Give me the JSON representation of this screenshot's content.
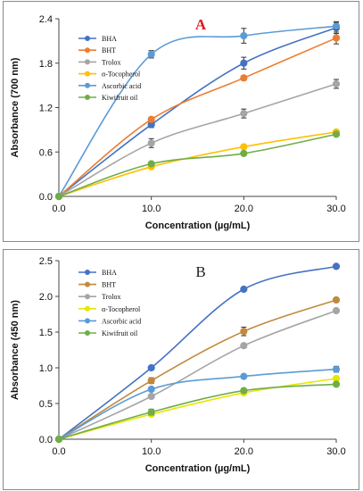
{
  "chart_data": [
    {
      "type": "line",
      "panel_label": "A",
      "xlabel": "Concentration (µg/mL)",
      "ylabel": "Absorbance (700 nm)",
      "x": [
        0,
        10,
        20,
        30
      ],
      "xticks": [
        "0.0",
        "10.0",
        "20.0",
        "30.0"
      ],
      "ylim": [
        0,
        2.4
      ],
      "yticks": [
        "0.0",
        "0.6",
        "1.2",
        "1.8",
        "2.4"
      ],
      "legend_position": "top-left",
      "series": [
        {
          "name": "BHA",
          "color": "#4472c4",
          "values": [
            0,
            0.97,
            1.8,
            2.28
          ],
          "errors": [
            0,
            0.04,
            0.08,
            0.08
          ]
        },
        {
          "name": "BHT",
          "color": "#ed7d31",
          "values": [
            0,
            1.04,
            1.6,
            2.14
          ],
          "errors": [
            0,
            0.03,
            0.03,
            0.08
          ]
        },
        {
          "name": "Trolox",
          "color": "#a5a5a5",
          "values": [
            0,
            0.72,
            1.12,
            1.52
          ],
          "errors": [
            0,
            0.06,
            0.06,
            0.06
          ]
        },
        {
          "name": "α-Tocopherol",
          "color": "#ffc000",
          "values": [
            0,
            0.4,
            0.67,
            0.87
          ],
          "errors": [
            0,
            0.02,
            0.02,
            0.02
          ]
        },
        {
          "name": "Ascorbic acid",
          "color": "#5b9bd5",
          "values": [
            0,
            1.92,
            2.17,
            2.3
          ],
          "errors": [
            0,
            0.05,
            0.1,
            0.05
          ]
        },
        {
          "name": "Kiwifruit oil",
          "color": "#70ad47",
          "values": [
            0,
            0.44,
            0.58,
            0.84
          ],
          "errors": [
            0,
            0.02,
            0.02,
            0.02
          ]
        }
      ]
    },
    {
      "type": "line",
      "panel_label": "B",
      "xlabel": "Concentration (µg/mL)",
      "ylabel": "Absorbance (450 nm)",
      "x": [
        0,
        10,
        20,
        30
      ],
      "xticks": [
        "0.0",
        "10.0",
        "20.0",
        "30.0"
      ],
      "ylim": [
        0,
        2.5
      ],
      "yticks": [
        "0.0",
        "0.5",
        "1.0",
        "1.5",
        "2.0",
        "2.5"
      ],
      "legend_position": "top-left",
      "series": [
        {
          "name": "BHA",
          "color": "#4472c4",
          "values": [
            0,
            1.0,
            2.1,
            2.42
          ],
          "errors": [
            0,
            0.02,
            0.02,
            0.02
          ]
        },
        {
          "name": "BHT",
          "color": "#c08a3e",
          "values": [
            0,
            0.82,
            1.51,
            1.95
          ],
          "errors": [
            0,
            0.04,
            0.06,
            0.03
          ]
        },
        {
          "name": "Trolox",
          "color": "#a5a5a5",
          "values": [
            0,
            0.6,
            1.31,
            1.8
          ],
          "errors": [
            0,
            0.02,
            0.02,
            0.02
          ]
        },
        {
          "name": "α-Tocopherol",
          "color": "#e6e600",
          "values": [
            0,
            0.35,
            0.65,
            0.85
          ],
          "errors": [
            0,
            0.02,
            0.02,
            0.02
          ]
        },
        {
          "name": "Ascorbic acid",
          "color": "#5b9bd5",
          "values": [
            0,
            0.7,
            0.88,
            0.98
          ],
          "errors": [
            0,
            0.03,
            0.02,
            0.04
          ]
        },
        {
          "name": "Kiwifruit oil",
          "color": "#70ad47",
          "values": [
            0,
            0.38,
            0.68,
            0.77
          ],
          "errors": [
            0,
            0.04,
            0.03,
            0.03
          ]
        }
      ]
    }
  ]
}
